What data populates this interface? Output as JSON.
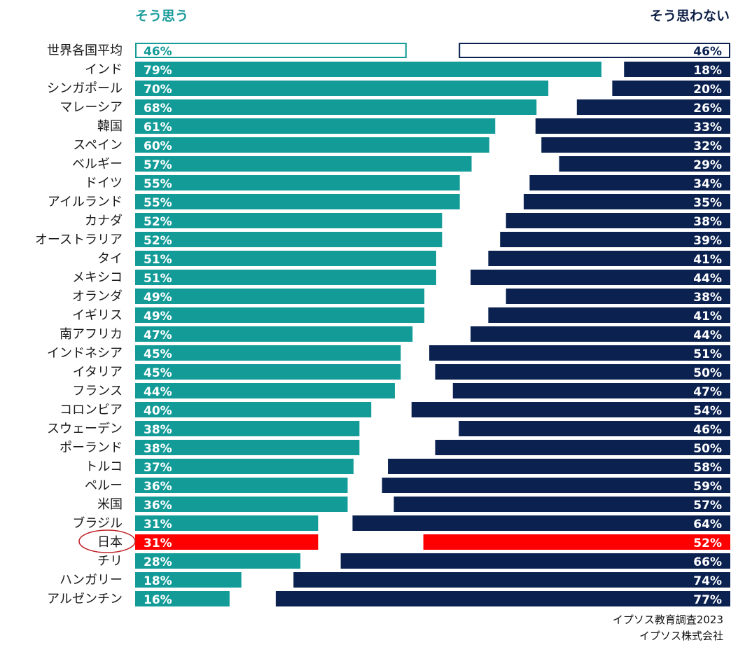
{
  "legend": {
    "agree": "そう思う",
    "disagree": "そう思わない"
  },
  "source": {
    "line1": "イプソス教育調査2023",
    "line2": "イプソス株式会社"
  },
  "colors": {
    "agree": "#139b98",
    "disagree": "#0b2250",
    "highlight": "#ff0000",
    "average_outline_agree": "#139b98",
    "average_outline_disagree": "#0b2250",
    "circle": "#c0262d"
  },
  "chart_data": {
    "type": "bar",
    "orientation": "horizontal",
    "categories": [
      "世界各国平均",
      "インド",
      "シンガポール",
      "マレーシア",
      "韓国",
      "スペイン",
      "ベルギー",
      "ドイツ",
      "アイルランド",
      "カナダ",
      "オーストラリア",
      "タイ",
      "メキシコ",
      "オランダ",
      "イギリス",
      "南アフリカ",
      "インドネシア",
      "イタリア",
      "フランス",
      "コロンビア",
      "スウェーデン",
      "ポーランド",
      "トルコ",
      "ペルー",
      "米国",
      "ブラジル",
      "日本",
      "チリ",
      "ハンガリー",
      "アルゼンチン"
    ],
    "series": [
      {
        "name": "そう思う",
        "values": [
          46,
          79,
          70,
          68,
          61,
          60,
          57,
          55,
          55,
          52,
          52,
          51,
          51,
          49,
          49,
          47,
          45,
          45,
          44,
          40,
          38,
          38,
          37,
          36,
          36,
          31,
          31,
          28,
          18,
          16
        ]
      },
      {
        "name": "そう思わない",
        "values": [
          46,
          18,
          20,
          26,
          33,
          32,
          29,
          34,
          35,
          38,
          39,
          41,
          44,
          38,
          41,
          44,
          51,
          50,
          47,
          54,
          46,
          50,
          58,
          59,
          57,
          64,
          52,
          66,
          74,
          77
        ]
      }
    ],
    "value_labels": {
      "agree": [
        "46%",
        "79%",
        "70%",
        "68%",
        "61%",
        "60%",
        "57%",
        "55%",
        "55%",
        "52%",
        "52%",
        "51%",
        "51%",
        "49%",
        "49%",
        "47%",
        "45%",
        "45%",
        "44%",
        "40%",
        "38%",
        "38%",
        "37%",
        "36%",
        "36%",
        "31%",
        "31%",
        "28%",
        "18%",
        "16%"
      ],
      "disagree": [
        "46%",
        "18%",
        "20%",
        "26%",
        "33%",
        "32%",
        "29%",
        "34%",
        "35%",
        "38%",
        "39%",
        "41%",
        "44%",
        "38%",
        "41%",
        "44%",
        "51%",
        "50%",
        "47%",
        "54%",
        "46%",
        "50%",
        "58%",
        "59%",
        "57%",
        "64%",
        "52%",
        "66%",
        "74%",
        "77%"
      ]
    },
    "average_category": "世界各国平均",
    "highlight_category": "日本",
    "xlim": [
      0,
      100
    ],
    "grid": false,
    "legend_position": "top"
  }
}
